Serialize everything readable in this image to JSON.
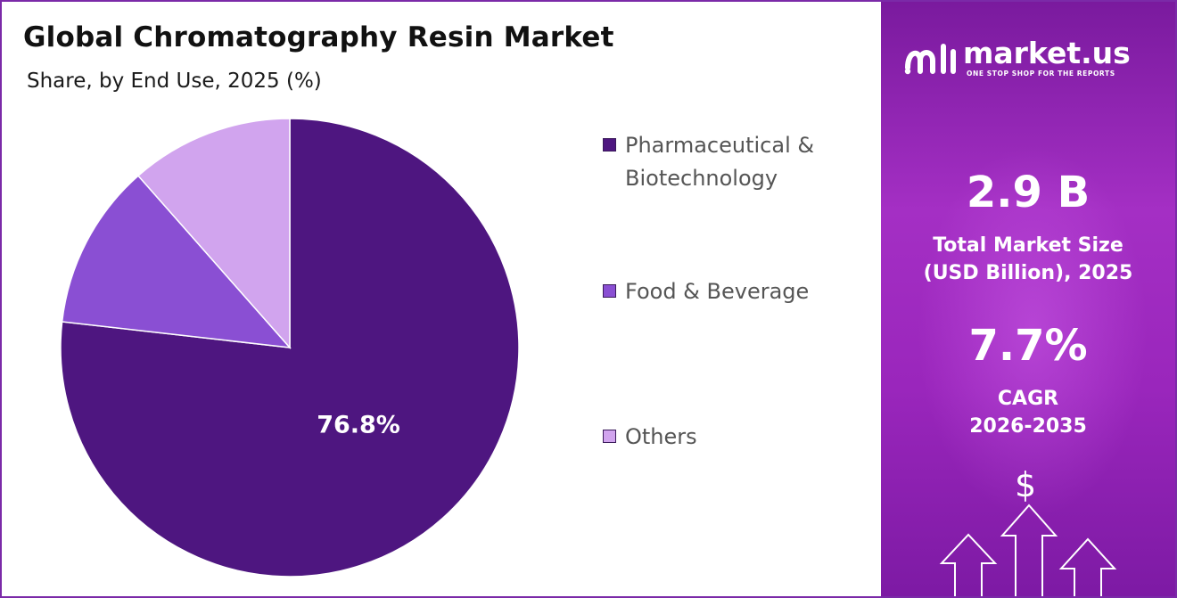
{
  "title": "Global Chromatography Resin Market",
  "subtitle": "Share, by End Use, 2025 (%)",
  "chart_data": {
    "type": "pie",
    "title": "Global Chromatography Resin Market",
    "subtitle": "Share, by End Use, 2025 (%)",
    "slices": [
      {
        "name": "Pharmaceutical & Biotechnology",
        "value": 76.8,
        "label": "76.8%",
        "color": "#4e1680"
      },
      {
        "name": "Food & Beverage",
        "value": 11.7,
        "label": "",
        "color": "#8a4fd3"
      },
      {
        "name": "Others",
        "value": 11.5,
        "label": "",
        "color": "#d1a4ee"
      }
    ],
    "start_angle_deg": 0,
    "direction": "clockwise",
    "legend_position": "right"
  },
  "legend": {
    "items": [
      {
        "line1": "Pharmaceutical &",
        "line2": "Biotechnology",
        "color": "#4e1680"
      },
      {
        "line1": "Food & Beverage",
        "line2": "",
        "color": "#8a4fd3"
      },
      {
        "line1": "Others",
        "line2": "",
        "color": "#d1a4ee"
      }
    ]
  },
  "panel": {
    "brand": "market.us",
    "tagline": "ONE STOP SHOP FOR THE REPORTS",
    "market_size_value": "2.9 B",
    "market_size_caption_line1": "Total Market Size",
    "market_size_caption_line2": "(USD Billion), 2025",
    "cagr_value": "7.7%",
    "cagr_caption_line1": "CAGR",
    "cagr_caption_line2": "2026-2035",
    "dollar_symbol": "$",
    "icons": [
      "market-us-logo-icon",
      "dollar-icon",
      "up-arrow-icon"
    ]
  },
  "colors": {
    "accent": "#7b2aa8",
    "panel_top": "#7a1a9e",
    "panel_mid": "#a42fc4"
  }
}
